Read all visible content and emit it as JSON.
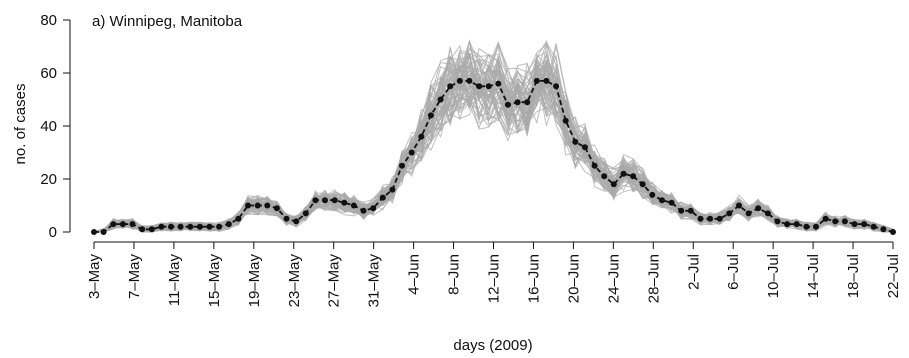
{
  "chart_data": {
    "type": "line",
    "title": "a) Winnipeg, Manitoba",
    "xlabel": "days (2009)",
    "ylabel": "no. of cases",
    "ylim": [
      0,
      80
    ],
    "yticks": [
      0,
      20,
      40,
      60,
      80
    ],
    "x_start": "3–May",
    "x_end": "22–Jul",
    "xtick_labels": [
      "3–May",
      "7–May",
      "11–May",
      "15–May",
      "19–May",
      "23–May",
      "27–May",
      "31–May",
      "4–Jun",
      "8–Jun",
      "12–Jun",
      "16–Jun",
      "20–Jun",
      "24–Jun",
      "28–Jun",
      "2–Jul",
      "6–Jul",
      "10–Jul",
      "14–Jul",
      "18–Jul",
      "22–Jul"
    ],
    "grid": false,
    "series": [
      {
        "style": "observed, black dotted points with dashed line",
        "color": "#111111",
        "values": [
          0,
          0,
          3,
          3,
          3,
          1,
          1,
          2,
          2,
          2,
          2,
          2,
          2,
          2,
          3,
          5,
          10,
          10,
          10,
          9,
          5,
          4,
          7,
          12,
          12,
          12,
          11,
          10,
          8,
          9,
          13,
          16,
          25,
          30,
          36,
          44,
          50,
          55,
          57,
          57,
          55,
          55,
          56,
          48,
          49,
          49,
          57,
          57,
          55,
          42,
          34,
          32,
          25,
          21,
          18,
          22,
          21,
          18,
          14,
          12,
          11,
          8,
          8,
          5,
          5,
          5,
          7,
          10,
          7,
          9,
          7,
          4,
          3,
          3,
          2,
          2,
          5,
          4,
          4,
          3,
          3,
          2,
          1,
          0
        ]
      }
    ],
    "band": {
      "style": "simulated trajectories (grey)",
      "color": "#a9a9a9"
    }
  }
}
